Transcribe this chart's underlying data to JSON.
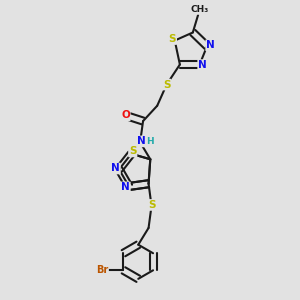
{
  "bg_color": "#e2e2e2",
  "bond_color": "#1a1a1a",
  "bond_width": 1.5,
  "dbo": 0.012,
  "atom_colors": {
    "C": "#1a1a1a",
    "N": "#1010ee",
    "S": "#bbbb00",
    "O": "#ee1010",
    "H": "#22aaaa",
    "Br": "#bb5500"
  },
  "fs": 7.5
}
